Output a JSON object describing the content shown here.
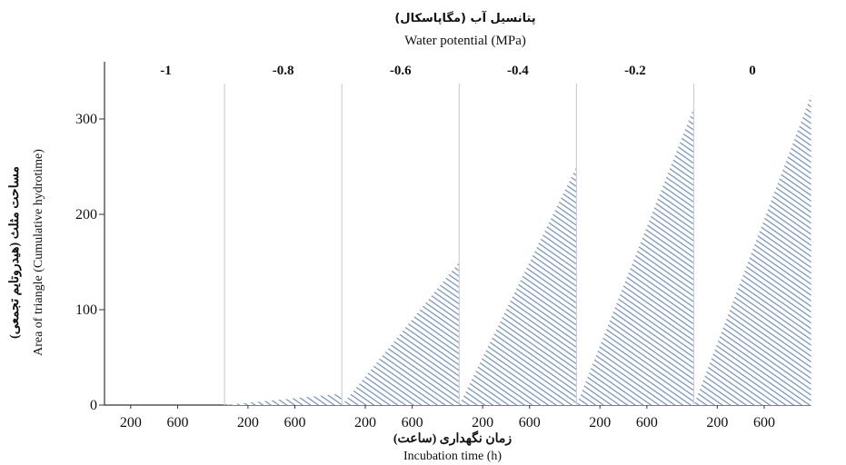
{
  "chart_data": {
    "type": "area",
    "top_title_fa": "پتانسیل آب (مگاپاسکال)",
    "top_title_en": "Water potential (MPa)",
    "ylabel_fa": "مساحت مثلث (هیدروتایم تجمعی)",
    "ylabel_en": "Area of triangle (Cumulative hydrotime)",
    "xlabel_fa": "زمان نگهداری (ساعت)",
    "xlabel_en": "Incubation time (h)",
    "ylim": [
      0,
      360
    ],
    "yticks": [
      "0",
      "100",
      "200",
      "300"
    ],
    "xlim": [
      0,
      1000
    ],
    "xticks": [
      "200",
      "600"
    ],
    "fill_color": "#6f8fbf",
    "series": [
      {
        "name": "-1",
        "x": [
          0,
          1000
        ],
        "y": [
          0,
          0
        ]
      },
      {
        "name": "-0.8",
        "x": [
          0,
          1000
        ],
        "y": [
          0,
          12
        ]
      },
      {
        "name": "-0.6",
        "x": [
          0,
          1000
        ],
        "y": [
          0,
          150
        ]
      },
      {
        "name": "-0.4",
        "x": [
          0,
          1000
        ],
        "y": [
          0,
          250
        ]
      },
      {
        "name": "-0.2",
        "x": [
          0,
          1000
        ],
        "y": [
          0,
          312
        ]
      },
      {
        "name": "0",
        "x": [
          0,
          1000
        ],
        "y": [
          0,
          325
        ]
      }
    ]
  }
}
